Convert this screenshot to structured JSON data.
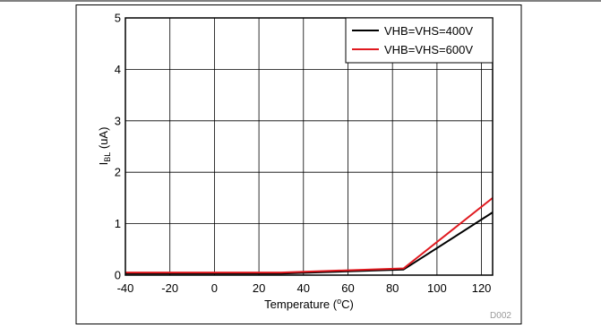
{
  "chart_data": {
    "type": "line",
    "xlabel": "Temperature (oC)",
    "xlabel_parts": {
      "main": "Temperature (",
      "sup": "o",
      "tail": "C)"
    },
    "ylabel_parts": {
      "main": "I",
      "sub": "BL",
      "tail": " (uA)"
    },
    "xlim": [
      -40,
      125
    ],
    "ylim": [
      0,
      5
    ],
    "xticks": [
      -40,
      -20,
      0,
      20,
      40,
      60,
      80,
      100,
      120
    ],
    "yticks": [
      0,
      1,
      2,
      3,
      4,
      5
    ],
    "grid": true,
    "legend_position": "top-right",
    "series": [
      {
        "name": "VHB=VHS=400V",
        "color": "#000000",
        "x": [
          -40,
          30,
          85,
          125
        ],
        "y": [
          0.03,
          0.03,
          0.11,
          1.22
        ]
      },
      {
        "name": "VHB=VHS=600V",
        "color": "#e0191f",
        "x": [
          -40,
          30,
          85,
          125
        ],
        "y": [
          0.05,
          0.05,
          0.13,
          1.5
        ]
      }
    ],
    "code": "D002"
  }
}
